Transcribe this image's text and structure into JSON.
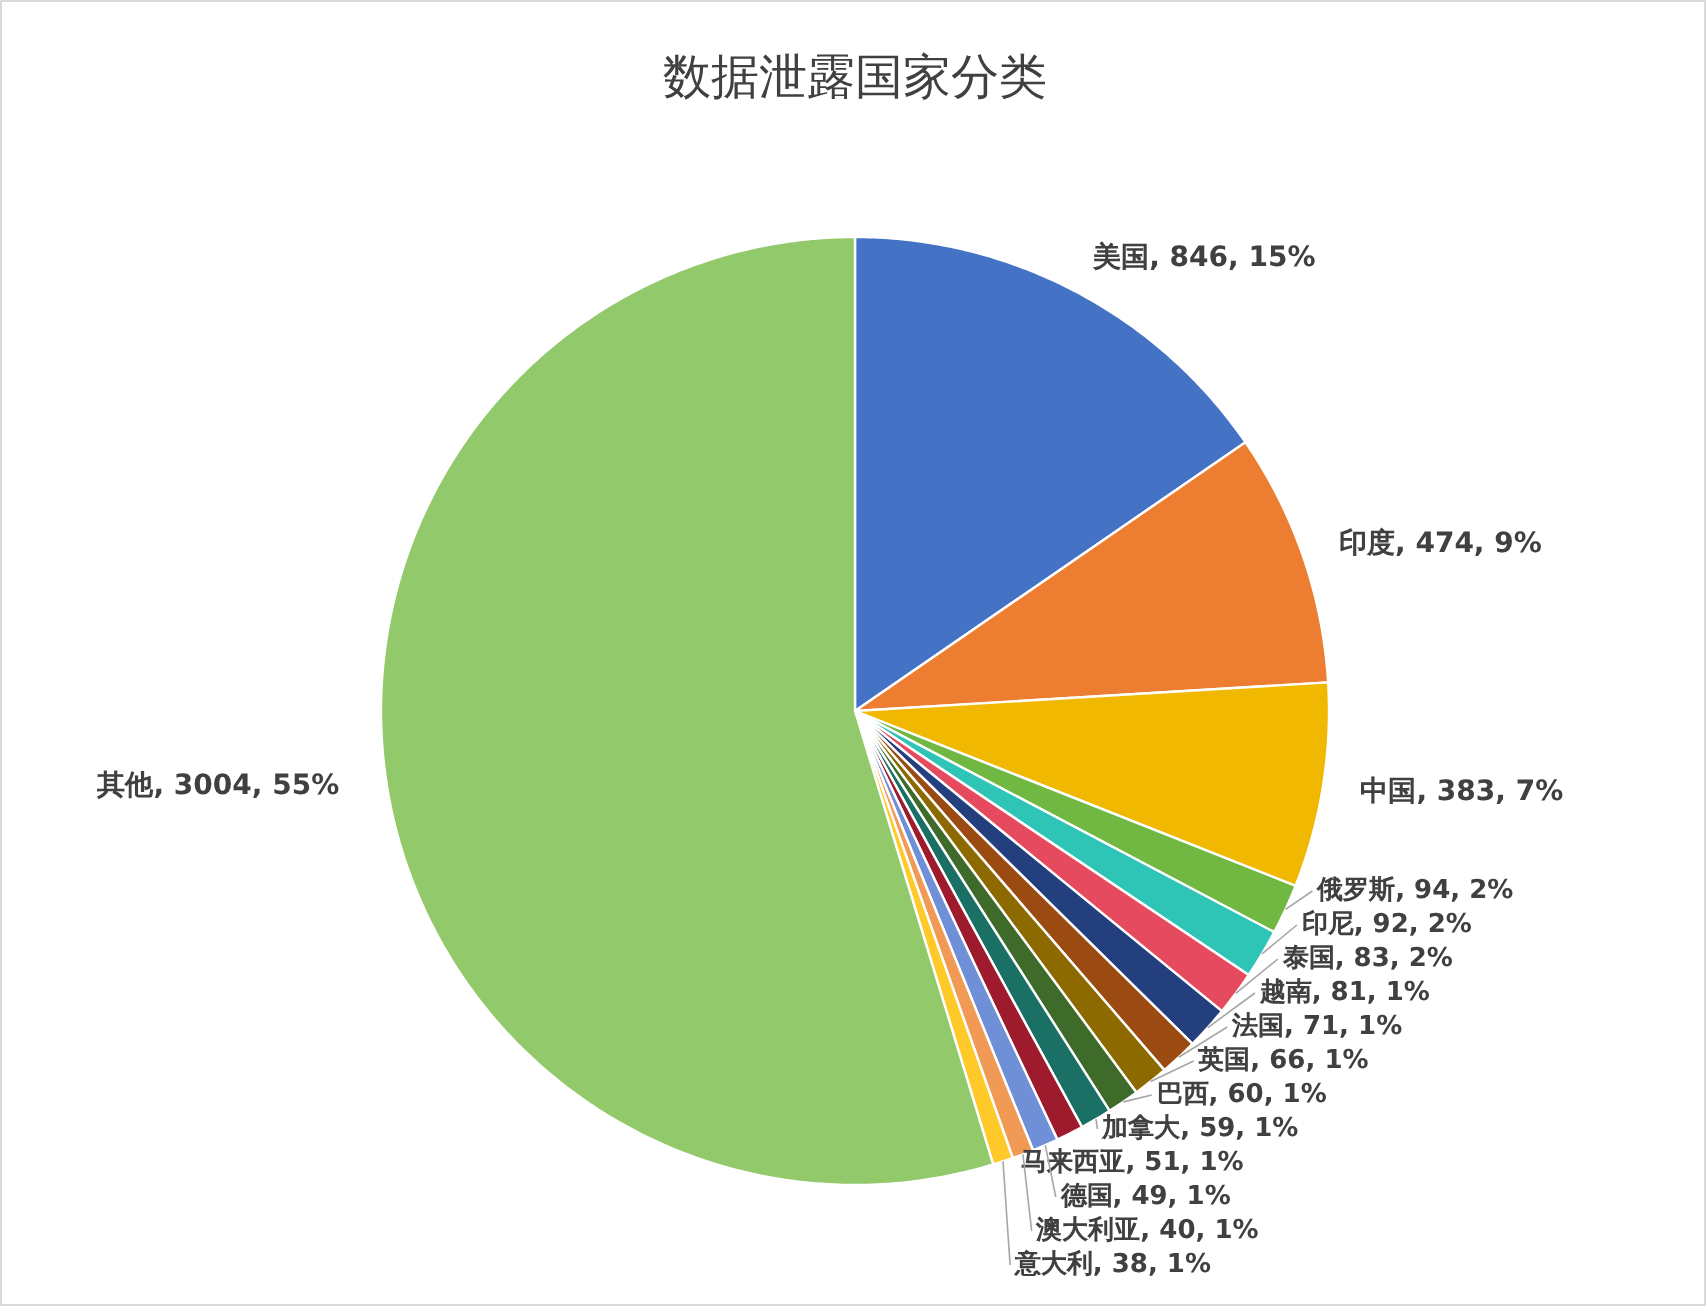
{
  "chart_data": {
    "type": "pie",
    "title": "数据泄露国家分类",
    "categories": [
      "美国",
      "印度",
      "中国",
      "俄罗斯",
      "印尼",
      "泰国",
      "越南",
      "法国",
      "英国",
      "巴西",
      "加拿大",
      "马来西亚",
      "德国",
      "澳大利亚",
      "意大利",
      "其他"
    ],
    "values": [
      846,
      474,
      383,
      94,
      92,
      83,
      81,
      71,
      66,
      60,
      59,
      51,
      49,
      40,
      38,
      3004
    ],
    "value_labels": [
      ", 846, 15%",
      ", 474, 9%",
      ", 383, 7%",
      ", 94, 2%",
      ", 92, 2%",
      ", 83, 2%",
      ", 81, 1%",
      ", 71, 1%",
      ", 66, 1%",
      ", 60, 1%",
      ", 59, 1%",
      ", 51, 1%",
      ", 49, 1%",
      ", 40, 1%",
      ", 38, 1%",
      ", 3004, 55%"
    ],
    "colors": [
      "#4472c4",
      "#ed7d31",
      "#f0b800",
      "#70b842",
      "#2ec4b6",
      "#e64a5f",
      "#233f7e",
      "#9b4b12",
      "#8c6a00",
      "#3f6b2a",
      "#1a7065",
      "#9e1a2d",
      "#6f8fd6",
      "#f19a55",
      "#ffc92a",
      "#92c96a"
    ],
    "legend": false
  }
}
